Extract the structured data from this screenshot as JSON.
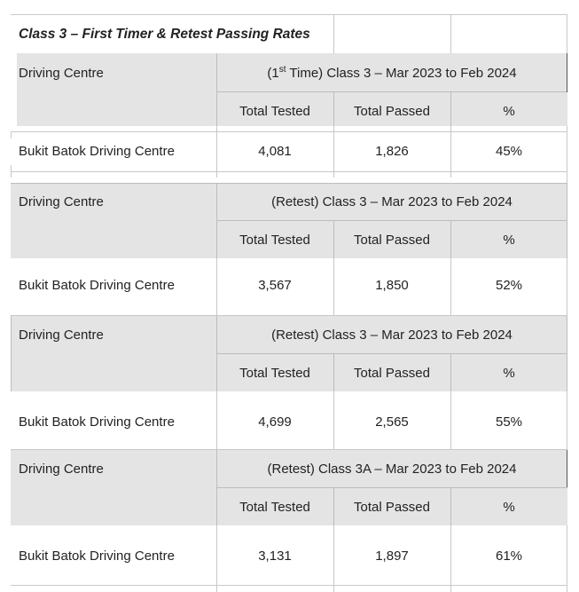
{
  "title": "Class 3 – First Timer & Retest Passing Rates",
  "sections": [
    {
      "centre_header": "Driving Centre",
      "group_prefix": "(1",
      "group_sup": "st",
      "group_suffix": " Time) Class 3 – Mar 2023 to Feb 2024",
      "col_tested": "Total Tested",
      "col_passed": "Total Passed",
      "col_pct": "%",
      "row": {
        "centre": "Bukit Batok Driving Centre",
        "tested": "4,081",
        "passed": "1,826",
        "pct": "45%"
      }
    },
    {
      "centre_header": "Driving Centre",
      "group": "(Retest) Class 3 – Mar 2023 to Feb 2024",
      "col_tested": "Total Tested",
      "col_passed": "Total Passed",
      "col_pct": "%",
      "row": {
        "centre": "Bukit Batok Driving Centre",
        "tested": "3,567",
        "passed": "1,850",
        "pct": "52%"
      }
    },
    {
      "centre_header": "Driving Centre",
      "group": "(Retest) Class 3 – Mar 2023 to Feb 2024",
      "col_tested": "Total Tested",
      "col_passed": "Total Passed",
      "col_pct": "%",
      "row": {
        "centre": "Bukit Batok Driving Centre",
        "tested": "4,699",
        "passed": "2,565",
        "pct": "55%"
      }
    },
    {
      "centre_header": "Driving Centre",
      "group": "(Retest) Class 3A – Mar 2023 to Feb 2024",
      "col_tested": "Total Tested",
      "col_passed": "Total Passed",
      "col_pct": "%",
      "row": {
        "centre": "Bukit Batok Driving Centre",
        "tested": "3,131",
        "passed": "1,897",
        "pct": "61%"
      }
    }
  ]
}
